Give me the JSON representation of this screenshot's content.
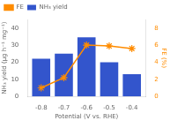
{
  "chart_data": {
    "type": "bar",
    "xlabel": "Potential (V vs. RHE)",
    "ylabel": "NH₃ yield (μg h⁻¹ mg⁻¹)",
    "y2label": "FE (%)",
    "x": [
      -0.8,
      -0.7,
      -0.6,
      -0.5,
      -0.4
    ],
    "series": [
      {
        "name": "NH₃ yield",
        "type": "bar",
        "color": "#3355CC",
        "values": [
          22,
          25,
          34.5,
          20,
          13
        ]
      },
      {
        "name": "FE",
        "type": "line",
        "color": "#FF8C00",
        "marker": "star",
        "line_style": "solid",
        "axis": "y2",
        "values": [
          1.0,
          2.2,
          6.0,
          5.9,
          5.6
        ]
      }
    ],
    "xlim": [
      -0.86,
      -0.34
    ],
    "xticks": [
      -0.8,
      -0.7,
      -0.6,
      -0.5,
      -0.4
    ],
    "ylim": [
      0,
      45
    ],
    "yticks": [
      0,
      10,
      20,
      30,
      40
    ],
    "y2lim": [
      0,
      9
    ],
    "y2ticks": [
      0,
      2,
      4,
      6,
      8
    ],
    "grid": false,
    "legend": "upper left"
  }
}
